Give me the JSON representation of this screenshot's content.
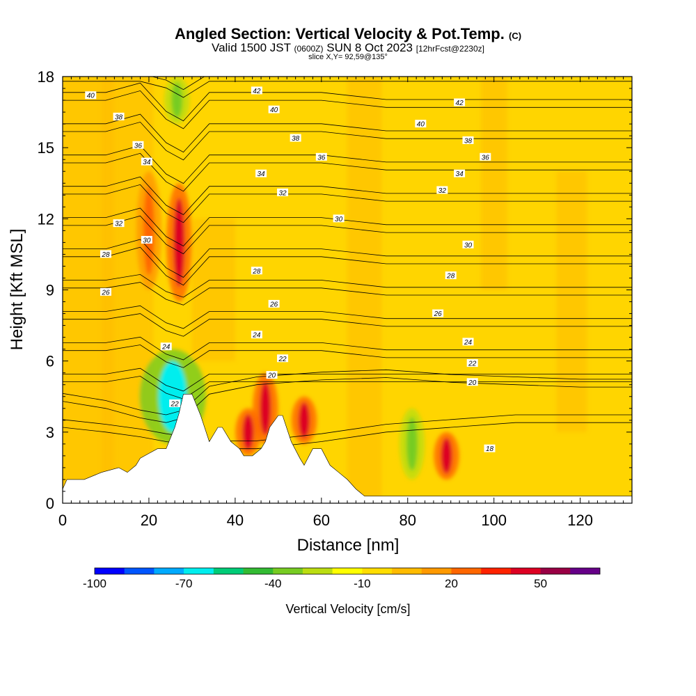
{
  "title": {
    "main": "Angled Section: Vertical Velocity & Pot.Temp.",
    "copyright": "(C)",
    "valid_prefix": "Valid 1500 JST",
    "zulu": "(0600Z)",
    "date": "SUN 8 Oct 2023",
    "forecast": "[12hrFcst@2230z]",
    "slice": "slice X,Y= 92,59@135°"
  },
  "chart_data": {
    "type": "heatmap",
    "xlabel": "Distance [nm]",
    "ylabel": "Height [Kft MSL]",
    "xlim": [
      0,
      132
    ],
    "ylim": [
      0,
      18
    ],
    "xticks": [
      0,
      20,
      40,
      60,
      80,
      100,
      120
    ],
    "yticks": [
      0,
      3,
      6,
      9,
      12,
      15,
      18
    ],
    "colorbar": {
      "label": "Vertical Velocity [cm/s]",
      "range": [
        -100,
        70
      ],
      "tick_values": [
        -100,
        -70,
        -40,
        -10,
        20,
        50
      ],
      "tick_labels": [
        "-100",
        "-70",
        "-40",
        "-10",
        "20",
        "50"
      ],
      "colors": [
        "#0000ff",
        "#0055ff",
        "#00aaff",
        "#00eeee",
        "#00cc77",
        "#33bb33",
        "#77cc22",
        "#bbdd11",
        "#ffff00",
        "#ffdd00",
        "#ffbb00",
        "#ff9900",
        "#ff6600",
        "#ff2200",
        "#dd0022",
        "#990044",
        "#660088"
      ]
    },
    "background_field": {
      "description": "mostly 0 to +20 cm/s (yellow-orange) with localized updrafts/downdrafts",
      "features": [
        {
          "type": "updraft",
          "x": 27,
          "y_range": [
            8.5,
            13.5
          ],
          "peak": 45
        },
        {
          "type": "updraft",
          "x": 20,
          "y_range": [
            9,
            14
          ],
          "peak": 25
        },
        {
          "type": "downdraft",
          "x": 26.5,
          "y_range": [
            16,
            18
          ],
          "peak": -40
        },
        {
          "type": "downdraft_band",
          "x_range": [
            20,
            31
          ],
          "y_range": [
            2.5,
            6.5
          ],
          "peak": -70
        },
        {
          "type": "updraft",
          "x": 47,
          "y_range": [
            2.5,
            5.5
          ],
          "peak": 45
        },
        {
          "type": "updraft",
          "x": 56,
          "y_range": [
            2.5,
            4.5
          ],
          "peak": 45
        },
        {
          "type": "updraft",
          "x": 43,
          "y_range": [
            2,
            4
          ],
          "peak": 40
        },
        {
          "type": "downdraft",
          "x": 81,
          "y_range": [
            1,
            4
          ],
          "peak": -40
        },
        {
          "type": "updraft",
          "x": 89,
          "y_range": [
            1,
            3
          ],
          "peak": 40
        }
      ]
    },
    "theta_contours": {
      "units": "C",
      "labeled_values": [
        18,
        20,
        22,
        24,
        26,
        28,
        30,
        32,
        34,
        36,
        38,
        40,
        42
      ],
      "labels": [
        {
          "text": "40",
          "x": 6.5,
          "y": 17.2
        },
        {
          "text": "38",
          "x": 13,
          "y": 16.3
        },
        {
          "text": "36",
          "x": 17.5,
          "y": 15.1
        },
        {
          "text": "34",
          "x": 19.5,
          "y": 14.4
        },
        {
          "text": "32",
          "x": 13,
          "y": 11.8
        },
        {
          "text": "30",
          "x": 19.5,
          "y": 11.1
        },
        {
          "text": "28",
          "x": 10,
          "y": 10.5
        },
        {
          "text": "26",
          "x": 10,
          "y": 8.9
        },
        {
          "text": "24",
          "x": 24,
          "y": 6.6
        },
        {
          "text": "22",
          "x": 26,
          "y": 4.2
        },
        {
          "text": "42",
          "x": 45,
          "y": 17.4
        },
        {
          "text": "40",
          "x": 49,
          "y": 16.6
        },
        {
          "text": "38",
          "x": 54,
          "y": 15.4
        },
        {
          "text": "36",
          "x": 60,
          "y": 14.6
        },
        {
          "text": "34",
          "x": 46,
          "y": 13.9
        },
        {
          "text": "32",
          "x": 51,
          "y": 13.1
        },
        {
          "text": "30",
          "x": 64,
          "y": 12.0
        },
        {
          "text": "28",
          "x": 45,
          "y": 9.8
        },
        {
          "text": "26",
          "x": 49,
          "y": 8.4
        },
        {
          "text": "24",
          "x": 45,
          "y": 7.1
        },
        {
          "text": "22",
          "x": 51,
          "y": 6.1
        },
        {
          "text": "20",
          "x": 48.5,
          "y": 5.4
        },
        {
          "text": "42",
          "x": 92,
          "y": 16.9
        },
        {
          "text": "40",
          "x": 83,
          "y": 16.0
        },
        {
          "text": "38",
          "x": 94,
          "y": 15.3
        },
        {
          "text": "36",
          "x": 98,
          "y": 14.6
        },
        {
          "text": "34",
          "x": 92,
          "y": 13.9
        },
        {
          "text": "32",
          "x": 88,
          "y": 13.2
        },
        {
          "text": "30",
          "x": 94,
          "y": 10.9
        },
        {
          "text": "28",
          "x": 90,
          "y": 9.6
        },
        {
          "text": "26",
          "x": 87,
          "y": 8.0
        },
        {
          "text": "24",
          "x": 94,
          "y": 6.8
        },
        {
          "text": "22",
          "x": 95,
          "y": 5.9
        },
        {
          "text": "20",
          "x": 95,
          "y": 5.1
        },
        {
          "text": "18",
          "x": 99,
          "y": 2.3
        }
      ]
    },
    "terrain_profile": {
      "x": [
        0,
        1,
        5,
        9,
        13,
        15,
        17,
        18,
        20,
        22,
        24,
        26,
        27,
        28,
        30,
        32,
        34,
        36,
        37,
        39,
        41,
        42,
        44,
        46,
        47,
        48,
        50,
        51,
        53,
        55,
        56,
        58,
        60,
        62,
        64,
        66,
        68,
        70,
        72,
        80,
        132
      ],
      "y": [
        0.6,
        1.0,
        1.0,
        1.3,
        1.5,
        1.3,
        1.6,
        1.9,
        2.1,
        2.3,
        2.3,
        3.2,
        3.8,
        4.6,
        4.6,
        3.7,
        2.6,
        3.2,
        3.2,
        2.6,
        2.3,
        2.0,
        2.0,
        2.3,
        2.6,
        3.2,
        3.7,
        3.7,
        2.6,
        1.9,
        1.6,
        2.3,
        2.3,
        1.6,
        1.3,
        1.0,
        0.6,
        0.3,
        0.3,
        0.3,
        0.3
      ]
    }
  }
}
